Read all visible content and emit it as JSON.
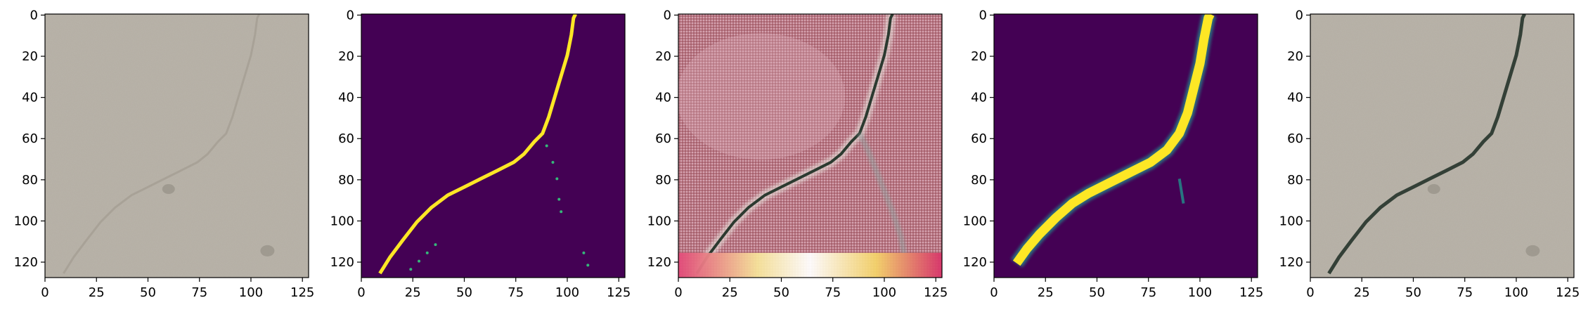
{
  "panels": [
    {
      "id": "input-photo",
      "kind": "concrete",
      "crack": "faint",
      "x_ticks": [
        "0",
        "25",
        "50",
        "75",
        "100",
        "125"
      ],
      "y_ticks": [
        "0",
        "20",
        "40",
        "60",
        "80",
        "100",
        "120"
      ]
    },
    {
      "id": "ground-truth-mask",
      "kind": "mask",
      "x_ticks": [
        "0",
        "25",
        "50",
        "75",
        "100",
        "125"
      ],
      "y_ticks": [
        "0",
        "20",
        "40",
        "60",
        "80",
        "100",
        "120"
      ]
    },
    {
      "id": "generated-image",
      "kind": "generated",
      "x_ticks": [
        "0",
        "25",
        "50",
        "75",
        "100",
        "125"
      ],
      "y_ticks": [
        "0",
        "20",
        "40",
        "60",
        "80",
        "100",
        "120"
      ]
    },
    {
      "id": "predicted-mask",
      "kind": "prediction",
      "x_ticks": [
        "0",
        "25",
        "50",
        "75",
        "100",
        "125"
      ],
      "y_ticks": [
        "0",
        "20",
        "40",
        "60",
        "80",
        "100",
        "120"
      ]
    },
    {
      "id": "overlay-photo",
      "kind": "concrete",
      "crack": "dark",
      "x_ticks": [
        "0",
        "25",
        "50",
        "75",
        "100",
        "125"
      ],
      "y_ticks": [
        "0",
        "20",
        "40",
        "60",
        "80",
        "100",
        "120"
      ]
    }
  ],
  "colors": {
    "mask_background": "#440154",
    "mask_foreground": "#fde725",
    "mask_edge": "#35b779",
    "mask_mid": "#21918c",
    "concrete": "#b4aea3",
    "generated_base": "#b5707a",
    "crack_dark": "#2c3a30"
  }
}
